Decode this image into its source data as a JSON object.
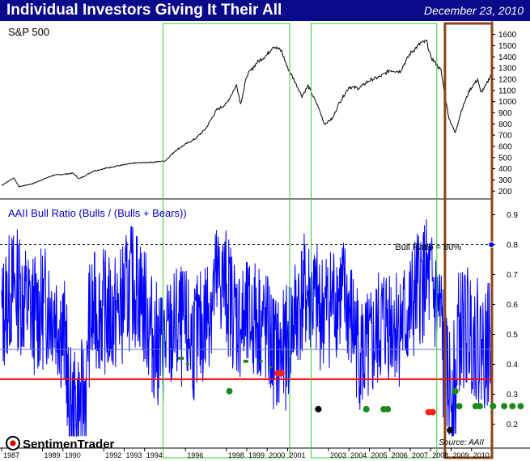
{
  "header": {
    "title": "Individual Investors Giving It Their All",
    "date": "December 23, 2010"
  },
  "logo": {
    "text": "SentimenTrader"
  },
  "source": "Source:  AAII",
  "colors": {
    "banner": "#0a0a8a",
    "spx_line": "#000000",
    "ratio_line": "#0000ff",
    "threshold_line": "#ff0000",
    "box_green": "#33cc33",
    "box_brown": "#8b4513"
  },
  "chart_data": [
    {
      "type": "line",
      "title": "S&P 500",
      "y_ticks": [
        200,
        300,
        400,
        500,
        600,
        700,
        800,
        900,
        1000,
        1100,
        1200,
        1300,
        1400,
        1500,
        1600
      ],
      "ylim": [
        130,
        1720
      ],
      "series": [
        {
          "values": [
            [
              1987.0,
              250
            ],
            [
              1987.6,
              320
            ],
            [
              1987.85,
              240
            ],
            [
              1988.5,
              265
            ],
            [
              1989.5,
              340
            ],
            [
              1990.5,
              360
            ],
            [
              1990.8,
              310
            ],
            [
              1991.5,
              380
            ],
            [
              1992.5,
              420
            ],
            [
              1993.5,
              450
            ],
            [
              1994.5,
              460
            ],
            [
              1995.0,
              470
            ],
            [
              1995.5,
              560
            ],
            [
              1996.0,
              620
            ],
            [
              1996.5,
              670
            ],
            [
              1997.0,
              760
            ],
            [
              1997.5,
              920
            ],
            [
              1998.0,
              980
            ],
            [
              1998.5,
              1150
            ],
            [
              1998.7,
              980
            ],
            [
              1999.0,
              1230
            ],
            [
              1999.5,
              1350
            ],
            [
              2000.0,
              1420
            ],
            [
              2000.3,
              1500
            ],
            [
              2000.7,
              1450
            ],
            [
              2001.0,
              1300
            ],
            [
              2001.3,
              1200
            ],
            [
              2001.7,
              1050
            ],
            [
              2002.0,
              1140
            ],
            [
              2002.5,
              950
            ],
            [
              2002.8,
              800
            ],
            [
              2003.2,
              850
            ],
            [
              2003.5,
              980
            ],
            [
              2004.0,
              1130
            ],
            [
              2004.5,
              1120
            ],
            [
              2005.0,
              1190
            ],
            [
              2005.5,
              1220
            ],
            [
              2006.0,
              1280
            ],
            [
              2006.5,
              1270
            ],
            [
              2007.0,
              1430
            ],
            [
              2007.5,
              1520
            ],
            [
              2007.8,
              1540
            ],
            [
              2008.0,
              1400
            ],
            [
              2008.5,
              1280
            ],
            [
              2008.75,
              1000
            ],
            [
              2008.9,
              850
            ],
            [
              2009.2,
              720
            ],
            [
              2009.5,
              920
            ],
            [
              2009.9,
              1100
            ],
            [
              2010.3,
              1200
            ],
            [
              2010.45,
              1080
            ],
            [
              2010.7,
              1140
            ],
            [
              2010.97,
              1250
            ]
          ]
        }
      ]
    },
    {
      "type": "line",
      "title": "AAII Bull Ratio (Bulls / (Bulls + Bears))",
      "y_ticks": [
        0.2,
        0.3,
        0.4,
        0.5,
        0.6,
        0.7,
        0.8,
        0.9
      ],
      "ylim": [
        0.12,
        0.95
      ],
      "reference_lines": [
        {
          "value": 0.8,
          "label": "Bull Ratio = 80%",
          "style": "dashed"
        },
        {
          "value": 0.45,
          "label": "",
          "style": "solid"
        },
        {
          "value": 0.35,
          "label": "",
          "style": "solid"
        }
      ],
      "highlight_point": {
        "x": 2010.97,
        "y": 0.8
      },
      "signal_dots": {
        "green": [
          [
            1995.7,
            0.42
          ],
          [
            1995.85,
            0.42
          ],
          [
            1996.1,
            0.4
          ],
          [
            1998.15,
            0.31
          ],
          [
            1998.9,
            0.41
          ],
          [
            1999.0,
            0.41
          ],
          [
            1999.7,
            0.41
          ],
          [
            2000.15,
            0.39
          ],
          [
            2004.85,
            0.25
          ],
          [
            2005.7,
            0.25
          ],
          [
            2005.9,
            0.25
          ],
          [
            2009.2,
            0.31
          ],
          [
            2009.4,
            0.26
          ],
          [
            2010.2,
            0.26
          ],
          [
            2010.4,
            0.26
          ],
          [
            2011.05,
            0.26
          ],
          [
            2011.6,
            0.26
          ],
          [
            2012.0,
            0.26
          ],
          [
            2012.4,
            0.26
          ]
        ],
        "red": [
          [
            2000.5,
            0.37
          ],
          [
            2000.7,
            0.37
          ],
          [
            2007.9,
            0.24
          ],
          [
            2008.1,
            0.24
          ]
        ],
        "black": [
          [
            2002.5,
            0.25
          ],
          [
            2008.95,
            0.18
          ]
        ]
      }
    }
  ],
  "x_axis": {
    "ticks": [
      "1987",
      "1989",
      "1990",
      "1992",
      "1993",
      "1994",
      "1996",
      "1998",
      "1999",
      "2000",
      "2001",
      "2003",
      "2004",
      "2005",
      "2006",
      "2007",
      "2008",
      "2009",
      "2010"
    ],
    "tick_years": [
      1987,
      1989,
      1990,
      1992,
      1993,
      1994,
      1996,
      1998,
      1999,
      2000,
      2001,
      2003,
      2004,
      2005,
      2006,
      2007,
      2008,
      2009,
      2010
    ]
  },
  "highlight_boxes": [
    {
      "color": "green",
      "start": 1994.9,
      "end": 2001.1
    },
    {
      "color": "green",
      "start": 2002.15,
      "end": 2008.3
    },
    {
      "color": "brown",
      "start": 2008.7,
      "end": 2011.0
    }
  ]
}
